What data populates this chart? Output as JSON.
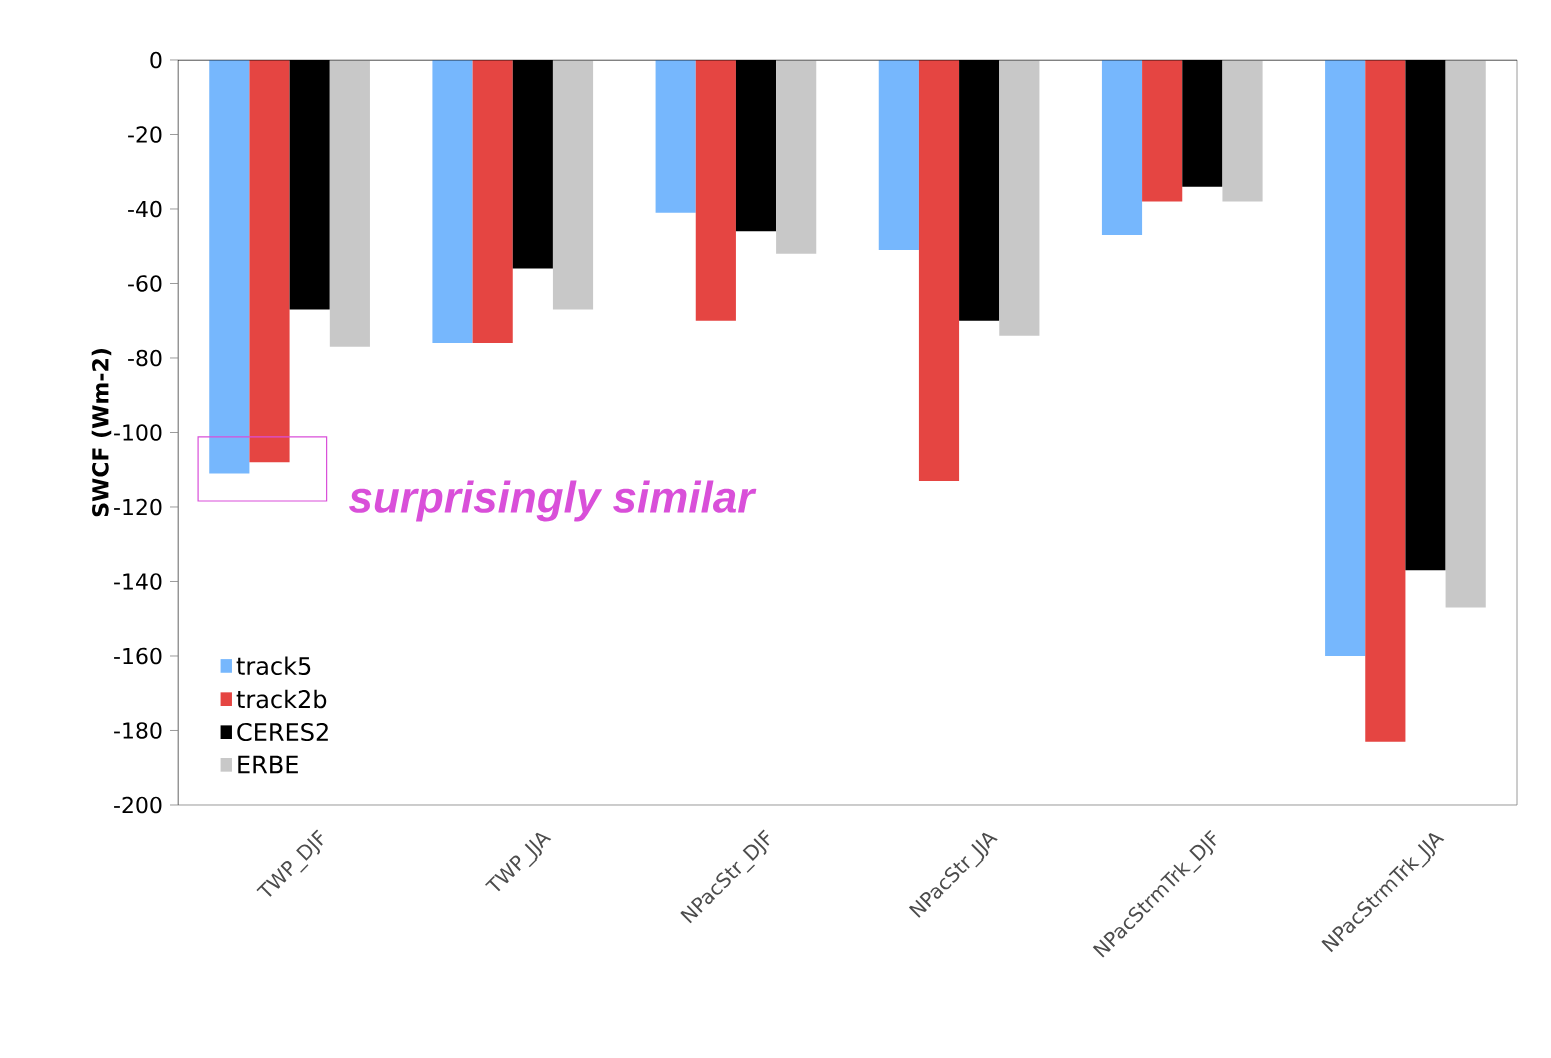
{
  "chart_data": {
    "type": "bar",
    "ylabel": "SWCF (Wm-2)",
    "categories": [
      "TWP_DJF",
      "TWP_JJA",
      "NPacStr_DJF",
      "NPacStr_JJA",
      "NPacStrmTrk_DJF",
      "NPacStrmTrk_JJA"
    ],
    "series": [
      {
        "name": "track5",
        "color": "#76b7fd",
        "values": [
          -111,
          -76,
          -41,
          -51,
          -47,
          -160
        ]
      },
      {
        "name": "track2b",
        "color": "#e54542",
        "values": [
          -108,
          -76,
          -70,
          -113,
          -38,
          -183
        ]
      },
      {
        "name": "CERES2",
        "color": "#000000",
        "values": [
          -67,
          -56,
          -46,
          -70,
          -34,
          -137
        ]
      },
      {
        "name": "ERBE",
        "color": "#c8c8c8",
        "values": [
          -77,
          -67,
          -52,
          -74,
          -38,
          -147
        ]
      }
    ],
    "ylim": [
      -200,
      0
    ],
    "yticks": [
      -200,
      -180,
      -160,
      -140,
      -120,
      -100,
      -80,
      -60,
      -40,
      -20,
      0
    ],
    "legend": "bottom left",
    "grid": false,
    "annotations": [
      "surprisingly similar"
    ]
  }
}
